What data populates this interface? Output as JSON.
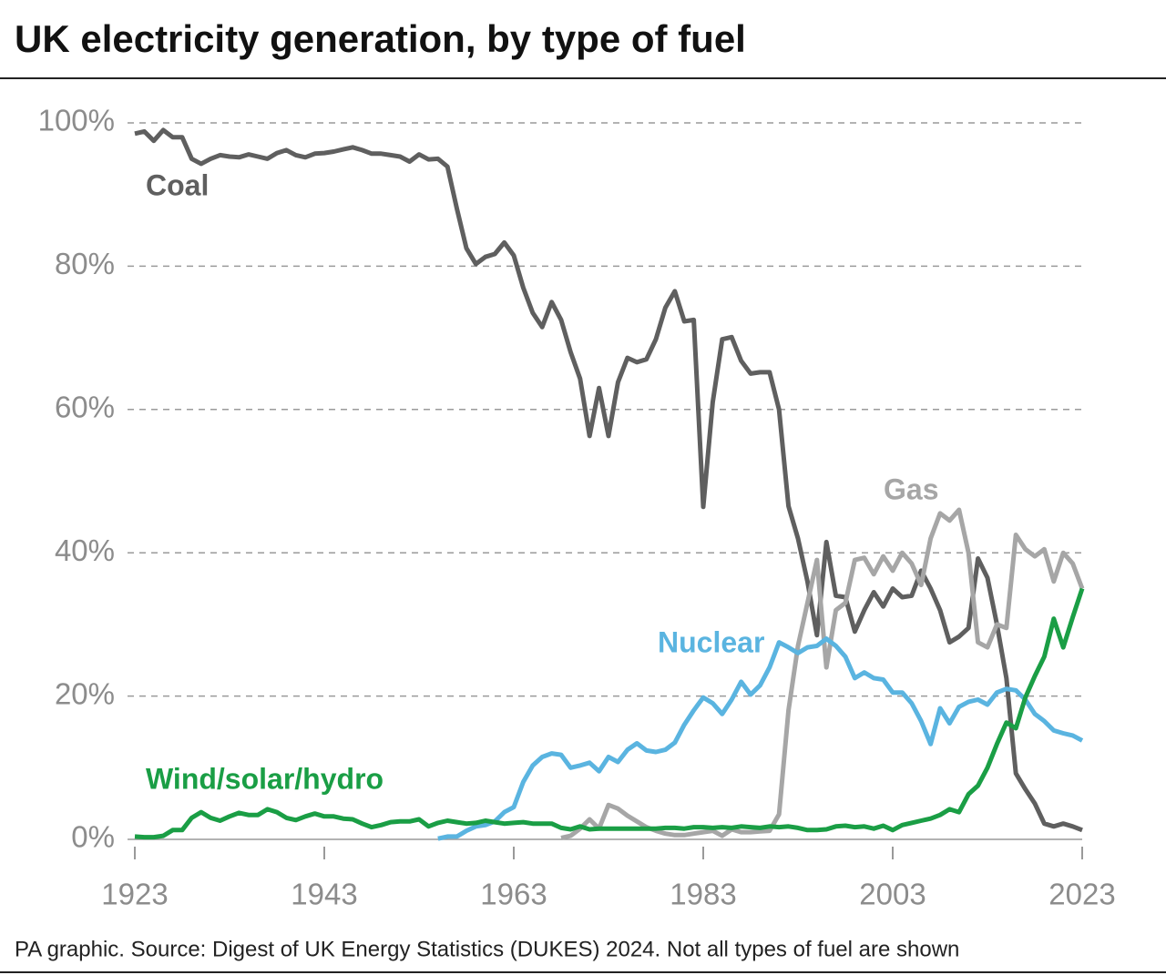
{
  "chart_data": {
    "type": "line",
    "title": "UK electricity generation, by type of fuel",
    "source": "PA graphic. Source: Digest of UK Energy Statistics (DUKES) 2024. Not all types of fuel are shown",
    "x": [
      1923,
      1924,
      1925,
      1926,
      1927,
      1928,
      1929,
      1930,
      1931,
      1932,
      1933,
      1934,
      1935,
      1936,
      1937,
      1938,
      1939,
      1940,
      1941,
      1942,
      1943,
      1944,
      1945,
      1946,
      1947,
      1948,
      1949,
      1950,
      1951,
      1952,
      1953,
      1954,
      1955,
      1956,
      1957,
      1958,
      1959,
      1960,
      1961,
      1962,
      1963,
      1964,
      1965,
      1966,
      1967,
      1968,
      1969,
      1970,
      1971,
      1972,
      1973,
      1974,
      1975,
      1976,
      1977,
      1978,
      1979,
      1980,
      1981,
      1982,
      1983,
      1984,
      1985,
      1986,
      1987,
      1988,
      1989,
      1990,
      1991,
      1992,
      1993,
      1994,
      1995,
      1996,
      1997,
      1998,
      1999,
      2000,
      2001,
      2002,
      2003,
      2004,
      2005,
      2006,
      2007,
      2008,
      2009,
      2010,
      2011,
      2012,
      2013,
      2014,
      2015,
      2016,
      2017,
      2018,
      2019,
      2020,
      2021,
      2022,
      2023
    ],
    "xlim": [
      1923,
      2023
    ],
    "xticks": [
      1923,
      1943,
      1963,
      1983,
      2003,
      2023
    ],
    "ylim": [
      0,
      100
    ],
    "yticks": [
      {
        "value": 0,
        "label": "0%"
      },
      {
        "value": 20,
        "label": "20%"
      },
      {
        "value": 40,
        "label": "40%"
      },
      {
        "value": 60,
        "label": "60%"
      },
      {
        "value": 80,
        "label": "80%"
      },
      {
        "value": 100,
        "label": "100%"
      }
    ],
    "grid": true,
    "series": [
      {
        "name": "Coal",
        "color": "#5f5f5f",
        "values": [
          98.5,
          98.8,
          97.5,
          99,
          98,
          98,
          95,
          94.3,
          95,
          95.5,
          95.3,
          95.2,
          95.6,
          95.3,
          95,
          95.8,
          96.2,
          95.5,
          95.2,
          95.7,
          95.8,
          96,
          96.3,
          96.6,
          96.2,
          95.7,
          95.7,
          95.5,
          95.3,
          94.6,
          95.6,
          94.9,
          95,
          93.9,
          88,
          82.5,
          80.3,
          81.3,
          81.7,
          83.3,
          81.5,
          77,
          73.5,
          71.5,
          75,
          72.5,
          68,
          64.3,
          56.3,
          63,
          56.3,
          63.8,
          67.2,
          66.6,
          67,
          69.8,
          74.2,
          76.5,
          72.3,
          72.5,
          46.4,
          61,
          69.8,
          70.1,
          66.8,
          65,
          65.2,
          65.2,
          60,
          46.5,
          42,
          36,
          28.5,
          41.5,
          34,
          33.8,
          29,
          32,
          34.5,
          32.5,
          35,
          33.8,
          34,
          37.5,
          35,
          32,
          27.5,
          28.3,
          29.5,
          39.2,
          36.5,
          30,
          22.5,
          9.2,
          7,
          5,
          2.2,
          1.8,
          2.2,
          1.8,
          1.3
        ]
      },
      {
        "name": "Gas",
        "color": "#a6a6a6",
        "values": [
          null,
          null,
          null,
          null,
          null,
          null,
          null,
          null,
          null,
          null,
          null,
          null,
          null,
          null,
          null,
          null,
          null,
          null,
          null,
          null,
          null,
          null,
          null,
          null,
          null,
          null,
          null,
          null,
          null,
          null,
          null,
          null,
          null,
          null,
          null,
          null,
          null,
          null,
          null,
          null,
          null,
          null,
          null,
          null,
          null,
          0.2,
          0.5,
          1.5,
          2.8,
          1.5,
          4.8,
          4.3,
          3.3,
          2.5,
          1.7,
          1.2,
          0.8,
          0.6,
          0.6,
          0.8,
          1.0,
          1.2,
          0.5,
          1.4,
          1.0,
          1.0,
          1.1,
          1.2,
          3.5,
          18,
          27,
          33,
          39,
          24,
          32,
          33,
          39,
          39.3,
          37,
          39.5,
          37.5,
          40,
          38.5,
          35.5,
          42,
          45.5,
          44.5,
          46,
          40,
          27.5,
          26.8,
          30,
          29.5,
          42.5,
          40.5,
          39.5,
          40.5,
          36,
          40,
          38.5,
          35
        ]
      },
      {
        "name": "Nuclear",
        "color": "#5ab4e0",
        "values": [
          null,
          null,
          null,
          null,
          null,
          null,
          null,
          null,
          null,
          null,
          null,
          null,
          null,
          null,
          null,
          null,
          null,
          null,
          null,
          null,
          null,
          null,
          null,
          null,
          null,
          null,
          null,
          null,
          null,
          null,
          null,
          null,
          0.1,
          0.4,
          0.4,
          1.2,
          1.8,
          2,
          2.5,
          3.8,
          4.5,
          8,
          10.3,
          11.5,
          12,
          11.8,
          10,
          10.3,
          10.7,
          9.5,
          11.5,
          10.8,
          12.5,
          13.4,
          12.4,
          12.2,
          12.5,
          13.5,
          16,
          18,
          19.8,
          19,
          17.5,
          19.5,
          22,
          20.2,
          21.5,
          24,
          27.5,
          26.8,
          26,
          26.8,
          27,
          28,
          27,
          25.5,
          22.5,
          23.3,
          22.5,
          22.3,
          20.5,
          20.5,
          19,
          16.5,
          13.3,
          18.3,
          16.2,
          18.5,
          19.2,
          19.5,
          18.8,
          20.5,
          21,
          20.8,
          19.5,
          17.5,
          16.5,
          15.2,
          14.8,
          14.5,
          13.8
        ]
      },
      {
        "name": "Wind/solar/hydro",
        "color": "#1a9e45",
        "values": [
          0.4,
          0.3,
          0.3,
          0.5,
          1.3,
          1.3,
          3,
          3.8,
          3,
          2.6,
          3.2,
          3.7,
          3.4,
          3.4,
          4.2,
          3.8,
          3,
          2.7,
          3.2,
          3.6,
          3.2,
          3.2,
          2.9,
          2.8,
          2.2,
          1.7,
          2,
          2.4,
          2.5,
          2.5,
          2.8,
          1.8,
          2.3,
          2.6,
          2.4,
          2.2,
          2.3,
          2.6,
          2.4,
          2.2,
          2.3,
          2.4,
          2.2,
          2.2,
          2.2,
          1.6,
          1.4,
          1.8,
          1.4,
          1.5,
          1.5,
          1.5,
          1.5,
          1.5,
          1.5,
          1.5,
          1.6,
          1.6,
          1.5,
          1.7,
          1.7,
          1.6,
          1.7,
          1.6,
          1.8,
          1.7,
          1.6,
          1.8,
          1.7,
          1.8,
          1.6,
          1.3,
          1.3,
          1.4,
          1.8,
          1.9,
          1.7,
          1.8,
          1.5,
          1.9,
          1.3,
          2,
          2.3,
          2.6,
          2.9,
          3.4,
          4.2,
          3.8,
          6.3,
          7.5,
          10,
          13.3,
          16.3,
          15.5,
          19.8,
          22.8,
          25.5,
          30.8,
          26.8,
          31,
          35
        ]
      }
    ]
  }
}
